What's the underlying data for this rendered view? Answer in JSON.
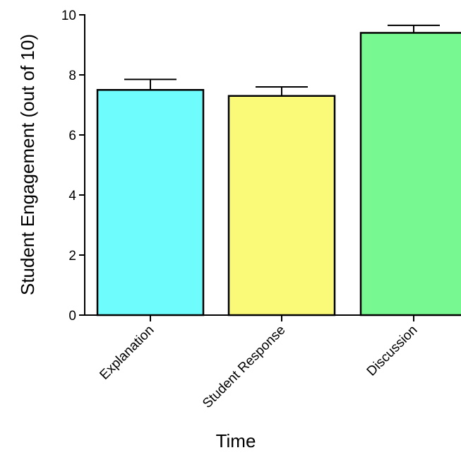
{
  "chart_data": {
    "type": "bar",
    "title": "",
    "xlabel": "Time",
    "ylabel": "Student Engagement (out of 10)",
    "categories": [
      "Explanation",
      "Student Response",
      "Discussion"
    ],
    "values": [
      7.5,
      7.3,
      9.4
    ],
    "error_upper": [
      0.35,
      0.3,
      0.25
    ],
    "bar_colors": [
      "#6ffcfc",
      "#fafa78",
      "#78f890"
    ],
    "ylim": [
      0,
      10
    ],
    "yticks": [
      "0",
      "2",
      "4",
      "6",
      "8",
      "10"
    ],
    "grid": false,
    "legend": "none"
  }
}
